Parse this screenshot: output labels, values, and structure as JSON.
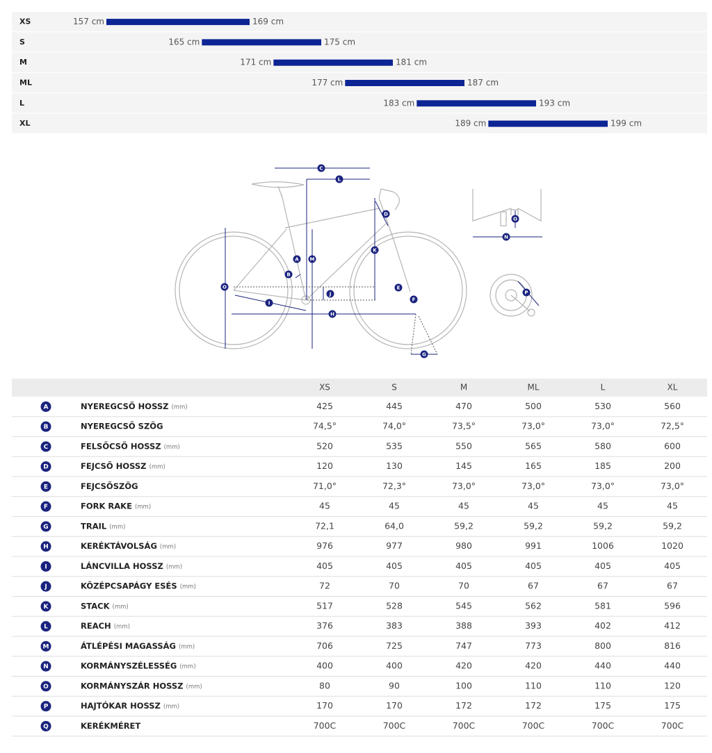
{
  "size_chart": {
    "rows": [
      {
        "size": "XS",
        "from": {
          "value": 157,
          "label": "157 cm"
        },
        "to": {
          "value": 169,
          "label": "169 cm"
        }
      },
      {
        "size": "S",
        "from": {
          "value": 165,
          "label": "165 cm"
        },
        "to": {
          "value": 175,
          "label": "175 cm"
        }
      },
      {
        "size": "M",
        "from": {
          "value": 171,
          "label": "171 cm"
        },
        "to": {
          "value": 181,
          "label": "181 cm"
        }
      },
      {
        "size": "ML",
        "from": {
          "value": 177,
          "label": "177 cm"
        },
        "to": {
          "value": 187,
          "label": "187 cm"
        }
      },
      {
        "size": "L",
        "from": {
          "value": 183,
          "label": "183 cm"
        },
        "to": {
          "value": 193,
          "label": "193 cm"
        }
      },
      {
        "size": "XL",
        "from": {
          "value": 189,
          "label": "189 cm"
        },
        "to": {
          "value": 199,
          "label": "199 cm"
        }
      }
    ]
  },
  "table": {
    "columns": [
      "XS",
      "S",
      "M",
      "ML",
      "L",
      "XL"
    ],
    "rows": [
      {
        "letter": "A",
        "name": "NYEREGCSŐ HOSSZ",
        "unit": "(mm)",
        "values": [
          "425",
          "445",
          "470",
          "500",
          "530",
          "560"
        ]
      },
      {
        "letter": "B",
        "name": "NYEREGCSŐ SZÖG",
        "values": [
          "74,5°",
          "74,0°",
          "73,5°",
          "73,0°",
          "73,0°",
          "72,5°"
        ]
      },
      {
        "letter": "C",
        "name": "FELSŐCSŐ HOSSZ",
        "unit": "(mm)",
        "values": [
          "520",
          "535",
          "550",
          "565",
          "580",
          "600"
        ]
      },
      {
        "letter": "D",
        "name": "FEJCSŐ HOSSZ",
        "unit": "(mm)",
        "values": [
          "120",
          "130",
          "145",
          "165",
          "185",
          "200"
        ]
      },
      {
        "letter": "E",
        "name": "FEJCSŐSZÖG",
        "values": [
          "71,0°",
          "72,3°",
          "73,0°",
          "73,0°",
          "73,0°",
          "73,0°"
        ]
      },
      {
        "letter": "F",
        "name": "FORK RAKE",
        "unit": "(mm)",
        "values": [
          "45",
          "45",
          "45",
          "45",
          "45",
          "45"
        ]
      },
      {
        "letter": "G",
        "name": "TRAIL",
        "unit": "(mm)",
        "values": [
          "72,1",
          "64,0",
          "59,2",
          "59,2",
          "59,2",
          "59,2"
        ]
      },
      {
        "letter": "H",
        "name": "KERÉKTÁVOLSÁG",
        "unit": "(mm)",
        "values": [
          "976",
          "977",
          "980",
          "991",
          "1006",
          "1020"
        ]
      },
      {
        "letter": "I",
        "name": "LÁNCVILLA HOSSZ",
        "unit": "(mm)",
        "values": [
          "405",
          "405",
          "405",
          "405",
          "405",
          "405"
        ]
      },
      {
        "letter": "J",
        "name": "KÖZÉPCSAPÁGY ESÉS",
        "unit": "(mm)",
        "values": [
          "72",
          "70",
          "70",
          "67",
          "67",
          "67"
        ]
      },
      {
        "letter": "K",
        "name": "STACK",
        "unit": "(mm)",
        "values": [
          "517",
          "528",
          "545",
          "562",
          "581",
          "596"
        ]
      },
      {
        "letter": "L",
        "name": "REACH",
        "unit": "(mm)",
        "values": [
          "376",
          "383",
          "388",
          "393",
          "402",
          "412"
        ]
      },
      {
        "letter": "M",
        "name": "ÁTLÉPÉSI MAGASSÁG",
        "unit": "(mm)",
        "values": [
          "706",
          "725",
          "747",
          "773",
          "800",
          "816"
        ]
      },
      {
        "letter": "N",
        "name": "KORMÁNYSZÉLESSÉG",
        "unit": "(mm)",
        "values": [
          "400",
          "400",
          "420",
          "420",
          "440",
          "440"
        ]
      },
      {
        "letter": "O",
        "name": "KORMÁNYSZÁR HOSSZ",
        "unit": "(mm)",
        "values": [
          "80",
          "90",
          "100",
          "110",
          "110",
          "120"
        ]
      },
      {
        "letter": "P",
        "name": "HAJTÓKAR HOSSZ",
        "unit": "(mm)",
        "values": [
          "170",
          "170",
          "172",
          "172",
          "175",
          "175"
        ]
      },
      {
        "letter": "Q",
        "name": "KERÉKMÉRET",
        "values": [
          "700C",
          "700C",
          "700C",
          "700C",
          "700C",
          "700C"
        ]
      }
    ]
  }
}
